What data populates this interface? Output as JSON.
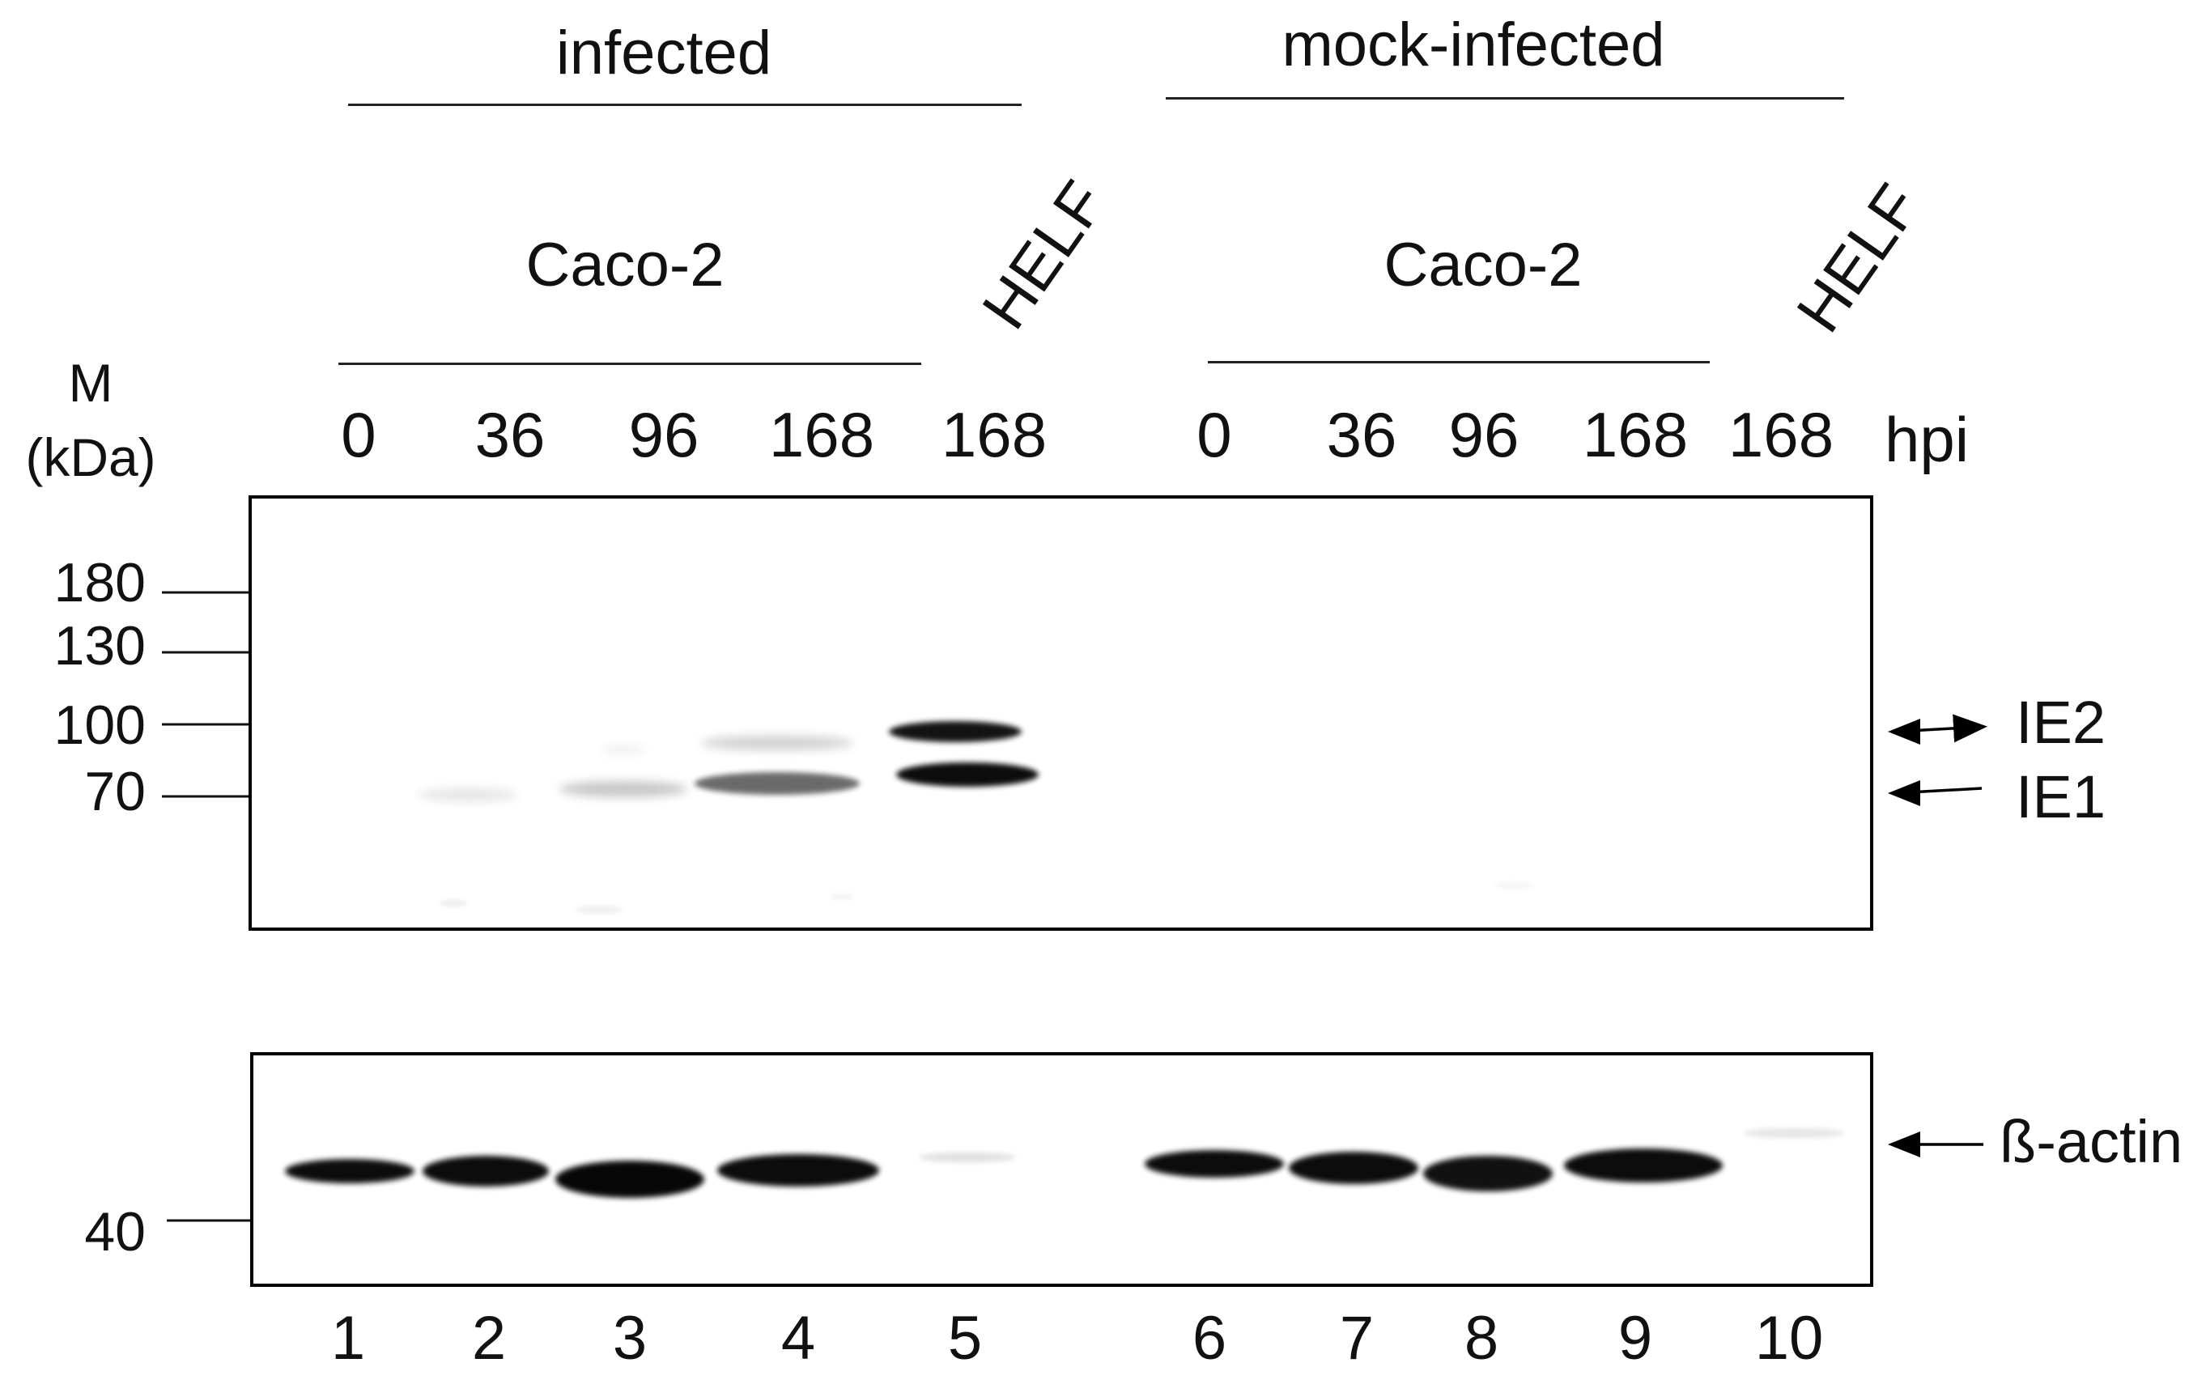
{
  "figure": {
    "groups": [
      {
        "label": "infected",
        "cell_line": "Caco-2",
        "control_line": "HELF"
      },
      {
        "label": "mock-infected",
        "cell_line": "Caco-2",
        "control_line": "HELF"
      }
    ],
    "marker_header": {
      "line1": "M",
      "line2": "(kDa)"
    },
    "timepoints": [
      "0",
      "36",
      "96",
      "168",
      "168",
      "0",
      "36",
      "96",
      "168",
      "168"
    ],
    "time_unit": "hpi",
    "markers_top": [
      "180",
      "130",
      "100",
      "70"
    ],
    "markers_bottom": [
      "40"
    ],
    "band_labels": {
      "ie2": "IE2",
      "ie1": "IE1",
      "actin": "ß-actin"
    },
    "lane_numbers": [
      "1",
      "2",
      "3",
      "4",
      "5",
      "6",
      "7",
      "8",
      "9",
      "10"
    ],
    "colors": {
      "band": "#0a0a0a",
      "border": "#000000",
      "background": "#ffffff"
    }
  }
}
